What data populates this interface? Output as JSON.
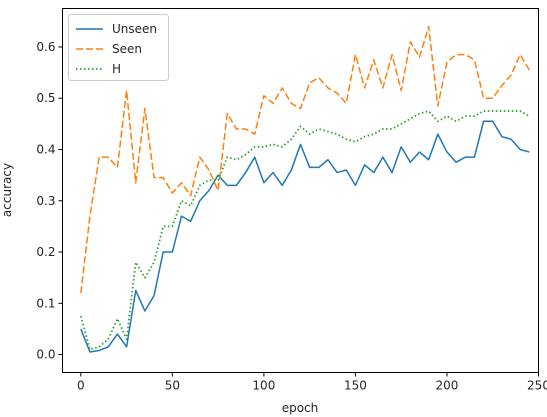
{
  "chart_data": {
    "type": "line",
    "title": "",
    "xlabel": "epoch",
    "ylabel": "accuracy",
    "xlim": [
      -10,
      250
    ],
    "ylim": [
      -0.035,
      0.675
    ],
    "x_ticks": [
      0,
      50,
      100,
      150,
      200,
      250
    ],
    "x_tick_labels": [
      "0",
      "50",
      "100",
      "150",
      "200",
      "250"
    ],
    "y_ticks": [
      0.0,
      0.1,
      0.2,
      0.3,
      0.4,
      0.5,
      0.6
    ],
    "y_tick_labels": [
      "0.0",
      "0.1",
      "0.2",
      "0.3",
      "0.4",
      "0.5",
      "0.6"
    ],
    "grid": false,
    "legend_position": "top-left",
    "x": [
      0,
      5,
      10,
      15,
      20,
      25,
      30,
      35,
      40,
      45,
      50,
      55,
      60,
      65,
      70,
      75,
      80,
      85,
      90,
      95,
      100,
      105,
      110,
      115,
      120,
      125,
      130,
      135,
      140,
      145,
      150,
      155,
      160,
      165,
      170,
      175,
      180,
      185,
      190,
      195,
      200,
      205,
      210,
      215,
      220,
      225,
      230,
      235,
      240,
      245
    ],
    "series": [
      {
        "name": "Unseen",
        "color": "#1f77b4",
        "style": "solid",
        "values": [
          0.05,
          0.005,
          0.008,
          0.015,
          0.04,
          0.015,
          0.125,
          0.085,
          0.115,
          0.2,
          0.2,
          0.27,
          0.26,
          0.3,
          0.32,
          0.35,
          0.33,
          0.33,
          0.355,
          0.385,
          0.335,
          0.355,
          0.33,
          0.36,
          0.41,
          0.365,
          0.365,
          0.38,
          0.355,
          0.36,
          0.33,
          0.37,
          0.355,
          0.385,
          0.355,
          0.405,
          0.375,
          0.395,
          0.38,
          0.43,
          0.395,
          0.375,
          0.385,
          0.385,
          0.455,
          0.455,
          0.425,
          0.42,
          0.4,
          0.395
        ]
      },
      {
        "name": "Seen",
        "color": "#ff7f0e",
        "style": "dashed",
        "values": [
          0.12,
          0.27,
          0.385,
          0.385,
          0.365,
          0.515,
          0.335,
          0.48,
          0.345,
          0.345,
          0.315,
          0.335,
          0.31,
          0.385,
          0.36,
          0.32,
          0.47,
          0.44,
          0.44,
          0.43,
          0.505,
          0.49,
          0.52,
          0.49,
          0.48,
          0.53,
          0.54,
          0.52,
          0.51,
          0.49,
          0.585,
          0.52,
          0.575,
          0.52,
          0.585,
          0.515,
          0.61,
          0.58,
          0.64,
          0.485,
          0.57,
          0.585,
          0.585,
          0.575,
          0.5,
          0.5,
          0.525,
          0.545,
          0.585,
          0.555
        ]
      },
      {
        "name": "H",
        "color": "#2ca02c",
        "style": "dotted",
        "values": [
          0.075,
          0.01,
          0.015,
          0.03,
          0.07,
          0.03,
          0.18,
          0.15,
          0.18,
          0.25,
          0.25,
          0.3,
          0.29,
          0.33,
          0.34,
          0.34,
          0.385,
          0.38,
          0.39,
          0.405,
          0.405,
          0.41,
          0.405,
          0.42,
          0.445,
          0.43,
          0.44,
          0.435,
          0.43,
          0.42,
          0.415,
          0.425,
          0.43,
          0.44,
          0.44,
          0.45,
          0.46,
          0.47,
          0.475,
          0.455,
          0.465,
          0.455,
          0.465,
          0.465,
          0.475,
          0.475,
          0.475,
          0.475,
          0.475,
          0.465
        ]
      }
    ]
  }
}
